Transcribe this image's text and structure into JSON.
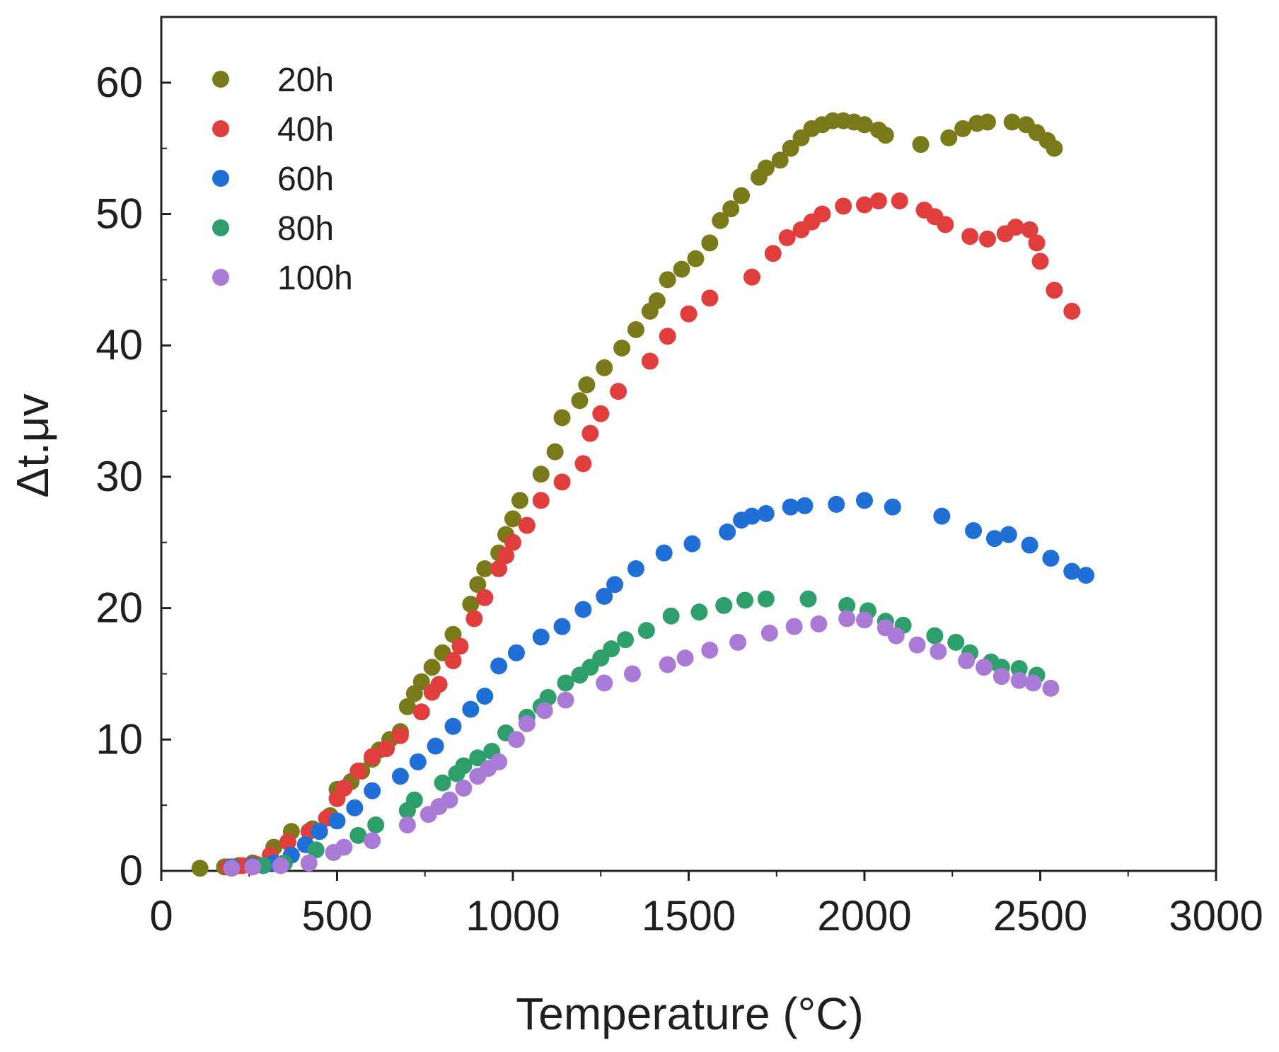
{
  "chart_data": {
    "type": "scatter",
    "title": "",
    "xlabel": "Temperature (°C)",
    "ylabel": "Δt.μv",
    "xlim": [
      0,
      3000
    ],
    "ylim": [
      0,
      65
    ],
    "xticks": [
      0,
      500,
      1000,
      1500,
      2000,
      2500,
      3000
    ],
    "yticks": [
      0,
      10,
      20,
      30,
      40,
      50,
      60
    ],
    "legend_position": "top-left",
    "grid": false,
    "series": [
      {
        "name": "20h",
        "color": "#7a7a1a",
        "points": [
          [
            110,
            0.2
          ],
          [
            180,
            0.3
          ],
          [
            220,
            0.4
          ],
          [
            260,
            0.6
          ],
          [
            320,
            1.8
          ],
          [
            370,
            3.0
          ],
          [
            430,
            3.2
          ],
          [
            480,
            4.2
          ],
          [
            500,
            6.2
          ],
          [
            540,
            6.8
          ],
          [
            570,
            7.6
          ],
          [
            600,
            8.5
          ],
          [
            620,
            9.2
          ],
          [
            650,
            10.0
          ],
          [
            680,
            10.6
          ],
          [
            700,
            12.5
          ],
          [
            720,
            13.5
          ],
          [
            740,
            14.4
          ],
          [
            770,
            15.5
          ],
          [
            800,
            16.6
          ],
          [
            830,
            18.0
          ],
          [
            880,
            20.3
          ],
          [
            900,
            21.8
          ],
          [
            920,
            23.0
          ],
          [
            960,
            24.2
          ],
          [
            980,
            25.6
          ],
          [
            1000,
            26.8
          ],
          [
            1020,
            28.2
          ],
          [
            1080,
            30.2
          ],
          [
            1120,
            31.9
          ],
          [
            1140,
            34.5
          ],
          [
            1190,
            35.8
          ],
          [
            1210,
            37.0
          ],
          [
            1260,
            38.3
          ],
          [
            1310,
            39.8
          ],
          [
            1350,
            41.2
          ],
          [
            1390,
            42.6
          ],
          [
            1410,
            43.4
          ],
          [
            1440,
            45.0
          ],
          [
            1480,
            45.8
          ],
          [
            1520,
            46.6
          ],
          [
            1560,
            47.8
          ],
          [
            1590,
            49.5
          ],
          [
            1620,
            50.4
          ],
          [
            1650,
            51.4
          ],
          [
            1700,
            52.8
          ],
          [
            1720,
            53.5
          ],
          [
            1760,
            54.1
          ],
          [
            1790,
            55.0
          ],
          [
            1820,
            55.8
          ],
          [
            1850,
            56.5
          ],
          [
            1880,
            56.8
          ],
          [
            1910,
            57.1
          ],
          [
            1940,
            57.1
          ],
          [
            1970,
            57.0
          ],
          [
            2000,
            56.8
          ],
          [
            2040,
            56.4
          ],
          [
            2060,
            56.0
          ],
          [
            2160,
            55.3
          ],
          [
            2240,
            55.8
          ],
          [
            2280,
            56.5
          ],
          [
            2320,
            56.9
          ],
          [
            2350,
            57.0
          ],
          [
            2420,
            57.0
          ],
          [
            2460,
            56.8
          ],
          [
            2490,
            56.2
          ],
          [
            2520,
            55.6
          ],
          [
            2540,
            55.0
          ]
        ]
      },
      {
        "name": "40h",
        "color": "#e03d3d",
        "points": [
          [
            190,
            0.3
          ],
          [
            230,
            0.4
          ],
          [
            270,
            0.5
          ],
          [
            310,
            1.2
          ],
          [
            360,
            2.2
          ],
          [
            420,
            3.0
          ],
          [
            470,
            4.0
          ],
          [
            500,
            5.5
          ],
          [
            520,
            6.3
          ],
          [
            560,
            7.6
          ],
          [
            600,
            8.7
          ],
          [
            640,
            9.3
          ],
          [
            680,
            10.3
          ],
          [
            740,
            12.1
          ],
          [
            770,
            13.6
          ],
          [
            790,
            14.2
          ],
          [
            830,
            16.0
          ],
          [
            850,
            17.1
          ],
          [
            890,
            19.2
          ],
          [
            920,
            20.8
          ],
          [
            960,
            23.0
          ],
          [
            980,
            24.0
          ],
          [
            1000,
            25.0
          ],
          [
            1040,
            26.3
          ],
          [
            1080,
            28.2
          ],
          [
            1140,
            29.6
          ],
          [
            1200,
            31.0
          ],
          [
            1220,
            33.3
          ],
          [
            1250,
            34.8
          ],
          [
            1300,
            36.5
          ],
          [
            1390,
            38.8
          ],
          [
            1440,
            40.7
          ],
          [
            1500,
            42.4
          ],
          [
            1560,
            43.6
          ],
          [
            1680,
            45.2
          ],
          [
            1740,
            47.0
          ],
          [
            1780,
            48.2
          ],
          [
            1820,
            48.8
          ],
          [
            1850,
            49.4
          ],
          [
            1880,
            50.0
          ],
          [
            1940,
            50.6
          ],
          [
            2000,
            50.7
          ],
          [
            2040,
            51.0
          ],
          [
            2100,
            51.0
          ],
          [
            2170,
            50.3
          ],
          [
            2200,
            49.8
          ],
          [
            2230,
            49.2
          ],
          [
            2300,
            48.3
          ],
          [
            2350,
            48.1
          ],
          [
            2400,
            48.5
          ],
          [
            2430,
            49.0
          ],
          [
            2470,
            48.8
          ],
          [
            2490,
            47.8
          ],
          [
            2500,
            46.4
          ],
          [
            2540,
            44.2
          ],
          [
            2590,
            42.6
          ]
        ]
      },
      {
        "name": "60h",
        "color": "#1f6fd6",
        "points": [
          [
            200,
            0.3
          ],
          [
            260,
            0.4
          ],
          [
            320,
            0.6
          ],
          [
            370,
            1.2
          ],
          [
            410,
            2.0
          ],
          [
            450,
            3.0
          ],
          [
            500,
            3.8
          ],
          [
            550,
            4.8
          ],
          [
            600,
            6.1
          ],
          [
            680,
            7.2
          ],
          [
            730,
            8.3
          ],
          [
            780,
            9.5
          ],
          [
            830,
            11.0
          ],
          [
            880,
            12.3
          ],
          [
            920,
            13.3
          ],
          [
            960,
            15.6
          ],
          [
            1010,
            16.6
          ],
          [
            1080,
            17.8
          ],
          [
            1140,
            18.6
          ],
          [
            1200,
            19.9
          ],
          [
            1260,
            20.9
          ],
          [
            1290,
            21.8
          ],
          [
            1350,
            23.0
          ],
          [
            1430,
            24.2
          ],
          [
            1510,
            24.9
          ],
          [
            1610,
            25.8
          ],
          [
            1650,
            26.7
          ],
          [
            1680,
            27.0
          ],
          [
            1720,
            27.2
          ],
          [
            1790,
            27.7
          ],
          [
            1830,
            27.8
          ],
          [
            1920,
            27.9
          ],
          [
            2000,
            28.2
          ],
          [
            2080,
            27.7
          ],
          [
            2220,
            27.0
          ],
          [
            2310,
            25.9
          ],
          [
            2370,
            25.3
          ],
          [
            2410,
            25.6
          ],
          [
            2470,
            24.8
          ],
          [
            2530,
            23.8
          ],
          [
            2590,
            22.8
          ],
          [
            2630,
            22.5
          ]
        ]
      },
      {
        "name": "80h",
        "color": "#2e9e6b",
        "points": [
          [
            290,
            0.4
          ],
          [
            350,
            0.6
          ],
          [
            440,
            1.6
          ],
          [
            560,
            2.7
          ],
          [
            610,
            3.5
          ],
          [
            700,
            4.6
          ],
          [
            720,
            5.4
          ],
          [
            800,
            6.7
          ],
          [
            840,
            7.4
          ],
          [
            860,
            8.0
          ],
          [
            900,
            8.6
          ],
          [
            940,
            9.1
          ],
          [
            980,
            10.5
          ],
          [
            1040,
            11.7
          ],
          [
            1080,
            12.5
          ],
          [
            1100,
            13.2
          ],
          [
            1150,
            14.3
          ],
          [
            1190,
            14.9
          ],
          [
            1220,
            15.5
          ],
          [
            1250,
            16.2
          ],
          [
            1280,
            16.9
          ],
          [
            1320,
            17.6
          ],
          [
            1380,
            18.3
          ],
          [
            1450,
            19.4
          ],
          [
            1530,
            19.7
          ],
          [
            1600,
            20.2
          ],
          [
            1660,
            20.6
          ],
          [
            1720,
            20.7
          ],
          [
            1840,
            20.7
          ],
          [
            1950,
            20.2
          ],
          [
            2010,
            19.8
          ],
          [
            2060,
            19.0
          ],
          [
            2110,
            18.7
          ],
          [
            2200,
            17.9
          ],
          [
            2260,
            17.4
          ],
          [
            2300,
            16.6
          ],
          [
            2360,
            15.9
          ],
          [
            2390,
            15.5
          ],
          [
            2440,
            15.4
          ],
          [
            2490,
            14.9
          ]
        ]
      },
      {
        "name": "100h",
        "color": "#a97ad6",
        "points": [
          [
            200,
            0.2
          ],
          [
            260,
            0.3
          ],
          [
            340,
            0.4
          ],
          [
            420,
            0.6
          ],
          [
            490,
            1.4
          ],
          [
            520,
            1.8
          ],
          [
            600,
            2.3
          ],
          [
            700,
            3.5
          ],
          [
            760,
            4.3
          ],
          [
            790,
            4.9
          ],
          [
            820,
            5.4
          ],
          [
            860,
            6.3
          ],
          [
            900,
            7.2
          ],
          [
            930,
            7.8
          ],
          [
            960,
            8.3
          ],
          [
            1010,
            10.0
          ],
          [
            1040,
            11.2
          ],
          [
            1090,
            12.2
          ],
          [
            1150,
            13.0
          ],
          [
            1260,
            14.3
          ],
          [
            1340,
            15.0
          ],
          [
            1440,
            15.7
          ],
          [
            1490,
            16.2
          ],
          [
            1560,
            16.8
          ],
          [
            1640,
            17.4
          ],
          [
            1730,
            18.1
          ],
          [
            1800,
            18.6
          ],
          [
            1870,
            18.8
          ],
          [
            1950,
            19.2
          ],
          [
            2000,
            19.1
          ],
          [
            2060,
            18.5
          ],
          [
            2090,
            17.9
          ],
          [
            2150,
            17.2
          ],
          [
            2210,
            16.7
          ],
          [
            2290,
            16.0
          ],
          [
            2340,
            15.5
          ],
          [
            2390,
            14.8
          ],
          [
            2440,
            14.5
          ],
          [
            2480,
            14.3
          ],
          [
            2530,
            13.9
          ]
        ]
      }
    ]
  }
}
